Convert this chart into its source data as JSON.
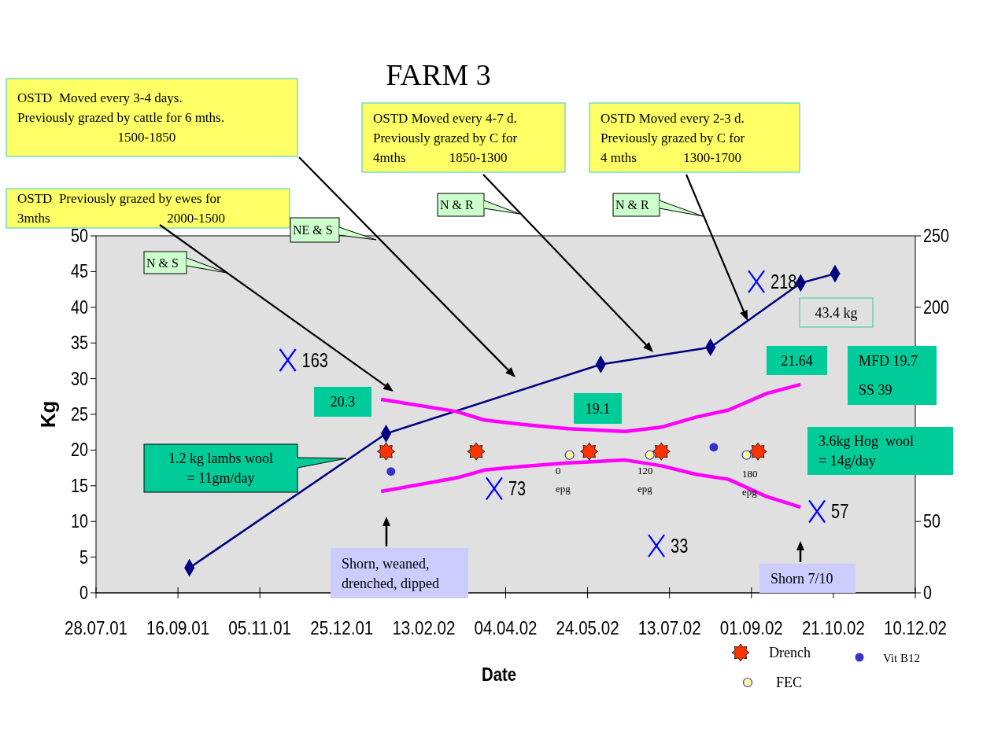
{
  "chart_data": {
    "type": "line",
    "title": "FARM 3",
    "xlabel": "Date",
    "ylabel": "Kg",
    "xlim": [
      "2001-07-28",
      "2002-12-10"
    ],
    "xticks": [
      {
        "value": "2001-07-28",
        "label": "28.07.01"
      },
      {
        "value": "2001-09-16",
        "label": "16.09.01"
      },
      {
        "value": "2001-11-05",
        "label": "05.11.01"
      },
      {
        "value": "2001-12-25",
        "label": "25.12.01"
      },
      {
        "value": "2002-02-13",
        "label": "13.02.02"
      },
      {
        "value": "2002-04-04",
        "label": "04.04.02"
      },
      {
        "value": "2002-05-24",
        "label": "24.05.02"
      },
      {
        "value": "2002-07-13",
        "label": "13.07.02"
      },
      {
        "value": "2002-09-01",
        "label": "01.09.02"
      },
      {
        "value": "2002-10-21",
        "label": "21.10.02"
      },
      {
        "value": "2002-12-10",
        "label": "10.12.02"
      }
    ],
    "ylim": [
      0,
      50
    ],
    "yticks": [
      0,
      5,
      10,
      15,
      20,
      25,
      30,
      35,
      40,
      45,
      50
    ],
    "y2lim": [
      0,
      250
    ],
    "y2ticks": [
      0,
      50,
      {
        "value": 100,
        "label": null
      },
      {
        "value": 150,
        "label": null
      },
      200,
      250
    ],
    "grid": false,
    "legend": "bottom right",
    "series": [
      {
        "color": "#000080",
        "marker": "diamond",
        "x": [
          "2001-09-23",
          "2002-01-21",
          "2002-06-01",
          "2002-08-07",
          "2002-10-01",
          "2002-10-22"
        ],
        "values": [
          3.5,
          22.3,
          32.0,
          34.4,
          43.4,
          44.7
        ]
      },
      {
        "type": "line",
        "color": "#ff00ff",
        "marker": "none",
        "x": [
          "2002-01-18",
          "2002-03-05",
          "2002-03-22",
          "2002-04-14",
          "2002-05-12",
          "2002-06-16",
          "2002-07-08",
          "2002-07-29",
          "2002-08-18",
          "2002-09-10",
          "2002-10-01"
        ],
        "values": [
          27.1,
          25.4,
          24.2,
          23.6,
          23.0,
          22.6,
          23.2,
          24.6,
          25.6,
          27.9,
          29.2
        ]
      },
      {
        "type": "line",
        "color": "#ff00ff",
        "marker": "none",
        "x": [
          "2002-01-18",
          "2002-03-05",
          "2002-03-22",
          "2002-04-14",
          "2002-05-12",
          "2002-06-16",
          "2002-07-08",
          "2002-07-29",
          "2002-08-18",
          "2002-09-10",
          "2002-10-01"
        ],
        "values": [
          14.2,
          16.1,
          17.2,
          17.7,
          18.2,
          18.6,
          17.8,
          16.6,
          15.9,
          13.5,
          12.0
        ]
      },
      {
        "type": "scatter",
        "axis": "y2",
        "color": "#0000ff",
        "marker": "cross",
        "x": [
          "2001-11-22",
          "2002-03-28",
          "2002-07-05",
          "2002-09-04",
          "2002-10-11"
        ],
        "values": [
          163,
          73,
          33,
          218,
          57
        ],
        "value_labels": [
          "163",
          "73",
          "33",
          "218",
          "57"
        ]
      },
      {
        "type": "scatter",
        "name": "Drench",
        "color": "#ff3300",
        "marker": "star",
        "x": [
          "2002-01-21",
          "2002-03-17",
          "2002-05-25",
          "2002-07-08",
          "2002-09-05"
        ],
        "values": [
          19.8,
          19.8,
          19.8,
          19.8,
          19.8
        ]
      },
      {
        "type": "scatter",
        "name": "FEC",
        "color": "#ffff99",
        "marker": "circle",
        "x": [
          "2002-05-13",
          "2002-07-01",
          "2002-08-29"
        ],
        "values": [
          19.3,
          19.3,
          19.3
        ]
      },
      {
        "type": "scatter",
        "name": "Vit B12",
        "color": "#3333cc",
        "marker": "circle",
        "x": [
          "2002-01-24",
          "2002-08-09"
        ],
        "values": [
          17.0,
          20.4
        ]
      }
    ],
    "annotations": [
      "OSTD  Previously grazed by ewes for\n3mths                                   2000-1500",
      "OSTD  Moved every 3-4 days.\nPreviously grazed by cattle for 6 mths.\n                              1500-1850",
      "OSTD Moved every 4-7 d.\nPreviously grazed by C for\n4mths             1850-1300",
      "OSTD Moved every 2-3 d.\nPreviously grazed by C for\n4 mths              1300-1700",
      "N & S",
      "NE & S",
      "N & R",
      "N & R",
      "20.3",
      "19.1",
      "21.64",
      "43.4 kg",
      "MFD 19.7\nSS 39",
      "3.6kg Hog  wool\n= 14g/day",
      "1.2 kg lambs wool\n= 11gm/day",
      "Shorn, weaned,\ndrenched, dipped",
      "Shorn 7/10",
      "0\nepg",
      "120\nepg",
      "180\nepg"
    ]
  }
}
